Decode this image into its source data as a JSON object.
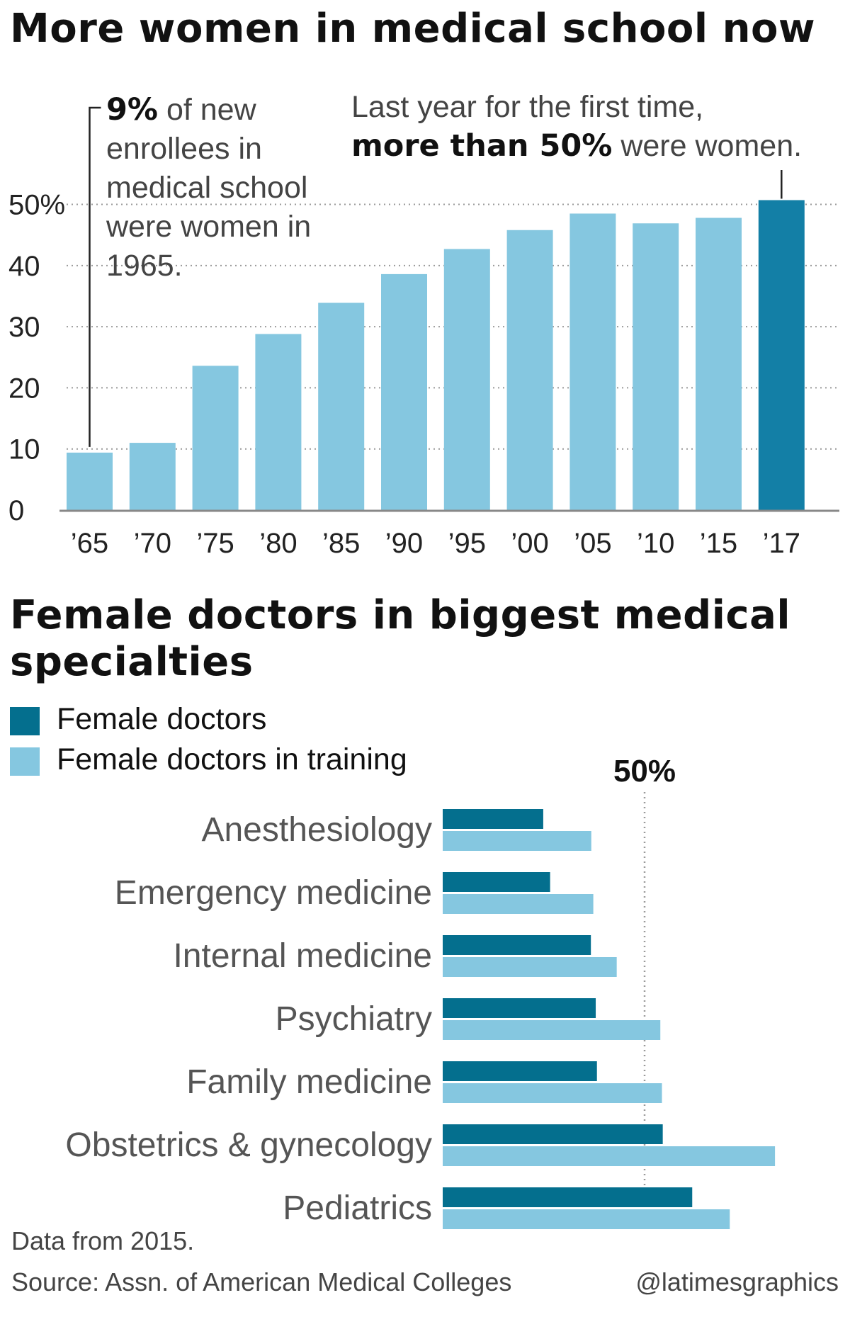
{
  "chart1": {
    "title": "More women in medical school now",
    "annotation_left": {
      "bold": "9%",
      "text": " of new enrollees in medical school were women in 1965."
    },
    "annotation_right": {
      "line1": "Last year for the first time,",
      "bold": "more than 50%",
      "rest": " were women."
    },
    "chart_data": {
      "type": "bar",
      "categories": [
        "’65",
        "’70",
        "’75",
        "’80",
        "’85",
        "’90",
        "’95",
        "’00",
        "’05",
        "’10",
        "’15",
        "’17"
      ],
      "values": [
        9.4,
        11.0,
        23.6,
        28.8,
        33.9,
        38.6,
        42.7,
        45.8,
        48.5,
        46.9,
        47.8,
        50.7
      ],
      "y_tick_labels": [
        "0",
        "10",
        "20",
        "30",
        "40",
        "50%"
      ],
      "y_ticks": [
        0,
        10,
        20,
        30,
        40,
        50
      ],
      "ylim": [
        0,
        54
      ],
      "highlight_index": 11,
      "grid": true,
      "colors": {
        "bar": "#85c7e0",
        "highlight": "#137fa6",
        "grid": "#9a9a9a",
        "axis": "#888888"
      }
    }
  },
  "chart2": {
    "title": "Female doctors in biggest medical specialties",
    "legend": [
      {
        "label": "Female doctors",
        "color": "#046f8e"
      },
      {
        "label": "Female doctors in training",
        "color": "#85c7e0"
      }
    ],
    "reference_label": "50%",
    "chart_data": {
      "type": "bar",
      "orientation": "horizontal",
      "categories": [
        "Anesthesiology",
        "Emergency medicine",
        "Internal medicine",
        "Psychiatry",
        "Family medicine",
        "Obstetrics & gynecology",
        "Pediatrics"
      ],
      "series": [
        {
          "name": "Female doctors",
          "values": [
            24.9,
            26.6,
            36.7,
            37.9,
            38.2,
            54.5,
            61.8
          ]
        },
        {
          "name": "Female doctors in training",
          "values": [
            36.8,
            37.3,
            43.1,
            53.9,
            54.3,
            82.3,
            71.1
          ]
        }
      ],
      "xlim": [
        0,
        100
      ],
      "reference_line": 50,
      "legend_position": "top-left"
    }
  },
  "footer": {
    "note": "Data from 2015.",
    "source": "Source: Assn. of American Medical Colleges",
    "credit": "@latimesgraphics"
  }
}
